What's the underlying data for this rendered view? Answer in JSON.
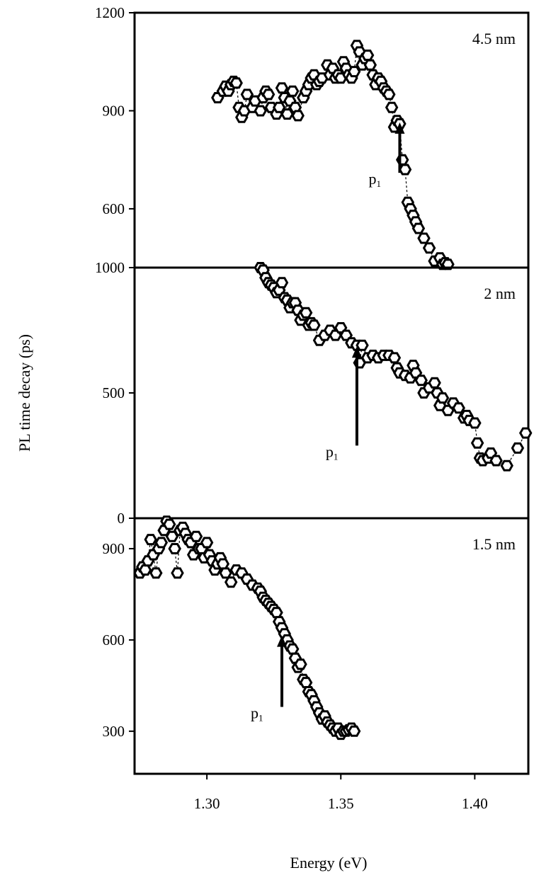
{
  "figure": {
    "ylabel": "PL time decay (ps)",
    "xlabel": "Energy (eV)"
  },
  "chart_data": [
    {
      "type": "scatter",
      "panel_label": "4.5 nm",
      "ylim": [
        420,
        1200
      ],
      "xlim": [
        1.273,
        1.42
      ],
      "yticks": [
        "1200",
        "900",
        "600"
      ],
      "ytick_values": [
        1200,
        900,
        600
      ],
      "xticks": [],
      "arrow": {
        "label": "p",
        "subscript": "1",
        "x": 1.372,
        "y_from": 710,
        "y_to": 860
      },
      "x": [
        1.304,
        1.306,
        1.307,
        1.308,
        1.309,
        1.31,
        1.311,
        1.312,
        1.313,
        1.314,
        1.315,
        1.317,
        1.318,
        1.32,
        1.321,
        1.322,
        1.323,
        1.324,
        1.326,
        1.327,
        1.328,
        1.329,
        1.33,
        1.331,
        1.332,
        1.333,
        1.334,
        1.336,
        1.337,
        1.338,
        1.339,
        1.34,
        1.341,
        1.342,
        1.343,
        1.345,
        1.346,
        1.347,
        1.348,
        1.349,
        1.35,
        1.351,
        1.352,
        1.353,
        1.354,
        1.355,
        1.356,
        1.357,
        1.358,
        1.359,
        1.36,
        1.361,
        1.362,
        1.363,
        1.364,
        1.365,
        1.366,
        1.367,
        1.368,
        1.369,
        1.37,
        1.371,
        1.372,
        1.373,
        1.374,
        1.375,
        1.376,
        1.377,
        1.378,
        1.379,
        1.381,
        1.383,
        1.385,
        1.387,
        1.388,
        1.389,
        1.39
      ],
      "y": [
        940,
        960,
        975,
        960,
        980,
        990,
        985,
        910,
        880,
        900,
        950,
        910,
        930,
        900,
        940,
        960,
        950,
        910,
        890,
        910,
        970,
        940,
        890,
        930,
        960,
        910,
        885,
        940,
        960,
        980,
        1000,
        1010,
        980,
        990,
        1000,
        1040,
        1010,
        1030,
        1000,
        1010,
        1000,
        1050,
        1030,
        1010,
        1000,
        1020,
        1100,
        1080,
        1040,
        1060,
        1070,
        1040,
        1010,
        980,
        1000,
        990,
        970,
        960,
        950,
        910,
        850,
        870,
        860,
        750,
        720,
        620,
        600,
        580,
        560,
        540,
        510,
        480,
        440,
        450,
        430,
        435,
        430
      ]
    },
    {
      "type": "scatter",
      "panel_label": "2 nm",
      "ylim": [
        0,
        1000
      ],
      "xlim": [
        1.273,
        1.42
      ],
      "yticks": [
        "1000",
        "500",
        "0"
      ],
      "ytick_values": [
        1000,
        500,
        0
      ],
      "xticks": [],
      "arrow": {
        "label": "p",
        "subscript": "1",
        "x": 1.356,
        "y_from": 290,
        "y_to": 680
      },
      "x": [
        1.32,
        1.321,
        1.322,
        1.323,
        1.324,
        1.325,
        1.326,
        1.327,
        1.328,
        1.329,
        1.33,
        1.331,
        1.332,
        1.333,
        1.334,
        1.335,
        1.336,
        1.337,
        1.338,
        1.339,
        1.34,
        1.342,
        1.344,
        1.346,
        1.348,
        1.35,
        1.352,
        1.354,
        1.356,
        1.357,
        1.358,
        1.36,
        1.362,
        1.364,
        1.366,
        1.368,
        1.37,
        1.371,
        1.372,
        1.374,
        1.376,
        1.377,
        1.378,
        1.38,
        1.381,
        1.383,
        1.385,
        1.386,
        1.387,
        1.388,
        1.39,
        1.392,
        1.394,
        1.396,
        1.397,
        1.398,
        1.4,
        1.401,
        1.402,
        1.403,
        1.405,
        1.406,
        1.408,
        1.412,
        1.416,
        1.419
      ],
      "y": [
        1000,
        990,
        960,
        940,
        930,
        920,
        900,
        910,
        940,
        880,
        870,
        840,
        860,
        860,
        830,
        790,
        810,
        820,
        770,
        780,
        770,
        710,
        730,
        750,
        730,
        760,
        730,
        700,
        690,
        620,
        690,
        640,
        650,
        640,
        650,
        650,
        640,
        600,
        580,
        570,
        560,
        610,
        580,
        550,
        500,
        520,
        540,
        500,
        450,
        480,
        430,
        460,
        440,
        400,
        410,
        390,
        380,
        300,
        240,
        230,
        240,
        260,
        230,
        210,
        280,
        340
      ]
    },
    {
      "type": "scatter",
      "panel_label": "1.5 nm",
      "ylim": [
        160,
        1000
      ],
      "xlim": [
        1.273,
        1.42
      ],
      "yticks": [
        "900",
        "600",
        "300"
      ],
      "ytick_values": [
        900,
        600,
        300
      ],
      "xticks": [
        "1.30",
        "1.35",
        "1.40"
      ],
      "xtick_values": [
        1.3,
        1.35,
        1.4
      ],
      "arrow": {
        "label": "p",
        "subscript": "1",
        "x": 1.328,
        "y_from": 380,
        "y_to": 610
      },
      "x": [
        1.275,
        1.276,
        1.277,
        1.278,
        1.279,
        1.28,
        1.281,
        1.282,
        1.283,
        1.284,
        1.285,
        1.286,
        1.287,
        1.288,
        1.289,
        1.29,
        1.291,
        1.292,
        1.293,
        1.294,
        1.295,
        1.296,
        1.297,
        1.298,
        1.299,
        1.3,
        1.301,
        1.302,
        1.303,
        1.304,
        1.305,
        1.306,
        1.307,
        1.309,
        1.311,
        1.313,
        1.315,
        1.317,
        1.319,
        1.32,
        1.321,
        1.322,
        1.323,
        1.324,
        1.325,
        1.326,
        1.327,
        1.328,
        1.329,
        1.33,
        1.331,
        1.332,
        1.333,
        1.334,
        1.335,
        1.336,
        1.337,
        1.338,
        1.339,
        1.34,
        1.341,
        1.342,
        1.343,
        1.344,
        1.345,
        1.346,
        1.347,
        1.348,
        1.349,
        1.35,
        1.351,
        1.352,
        1.353,
        1.354,
        1.355
      ],
      "y": [
        820,
        840,
        830,
        860,
        930,
        880,
        820,
        900,
        920,
        960,
        990,
        980,
        940,
        900,
        820,
        960,
        970,
        950,
        930,
        920,
        880,
        940,
        900,
        900,
        870,
        920,
        880,
        860,
        830,
        850,
        870,
        850,
        820,
        790,
        830,
        820,
        800,
        780,
        770,
        760,
        740,
        730,
        720,
        710,
        700,
        690,
        660,
        640,
        620,
        600,
        580,
        570,
        540,
        510,
        520,
        470,
        460,
        430,
        420,
        400,
        380,
        360,
        340,
        350,
        330,
        320,
        310,
        300,
        310,
        290,
        300,
        300,
        305,
        310,
        300
      ]
    }
  ]
}
